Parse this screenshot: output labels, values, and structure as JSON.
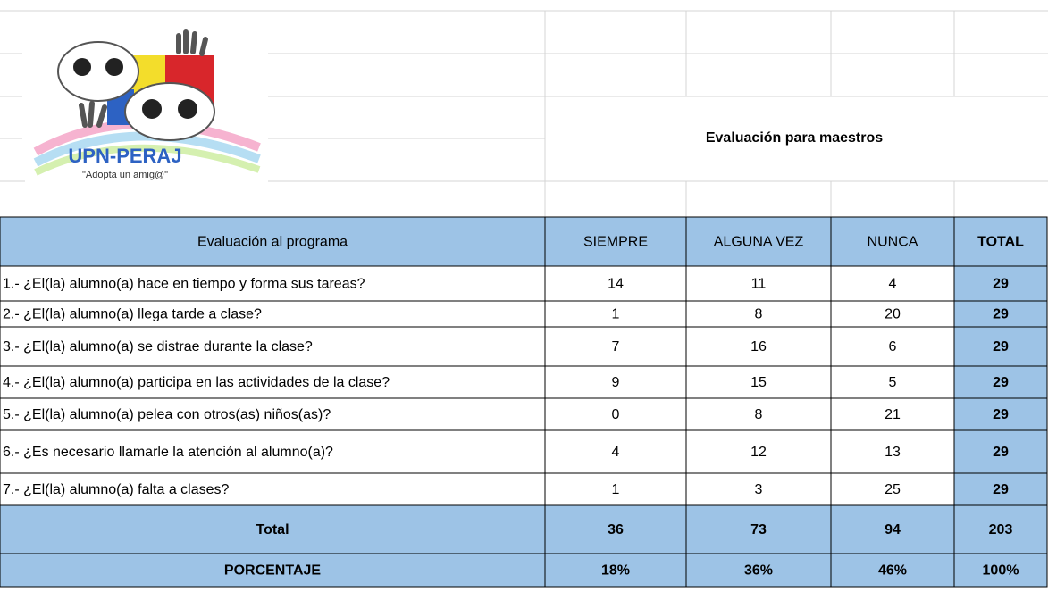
{
  "logo": {
    "name": "UPN-PERAJ",
    "slogan": "\"Adopta un amig@\""
  },
  "title": "Evaluación para maestros",
  "table": {
    "header": [
      "Evaluación al programa",
      "SIEMPRE",
      "ALGUNA VEZ",
      "NUNCA",
      "TOTAL"
    ],
    "rows": [
      [
        "1.- ¿El(la) alumno(a) hace en tiempo y forma sus tareas?",
        14,
        11,
        4,
        29
      ],
      [
        "2.- ¿El(la) alumno(a) llega tarde a clase?",
        1,
        8,
        20,
        29
      ],
      [
        "3.- ¿El(la) alumno(a) se distrae durante la clase?",
        7,
        16,
        6,
        29
      ],
      [
        "4.- ¿El(la) alumno(a) participa en las actividades de la clase?",
        9,
        15,
        5,
        29
      ],
      [
        "5.- ¿El(la) alumno(a) pelea con otros(as) niños(as)?",
        0,
        8,
        21,
        29
      ],
      [
        "6.- ¿Es necesario llamarle la atención al alumno(a)?",
        4,
        12,
        13,
        29
      ],
      [
        "7.- ¿El(la) alumno(a) falta a clases?",
        1,
        3,
        25,
        29
      ]
    ],
    "total": [
      "Total",
      36,
      73,
      94,
      203
    ],
    "percentage": [
      "PORCENTAJE",
      "18%",
      "36%",
      "46%",
      "100%"
    ]
  }
}
